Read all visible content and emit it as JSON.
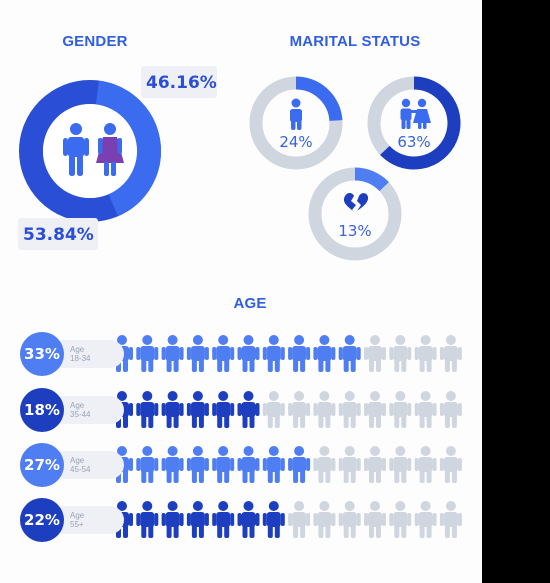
{
  "colors": {
    "dark_blue": "#1d3fbf",
    "mid_blue": "#3b6cf0",
    "light_blue": "#4f7ef2",
    "grey": "#cfd6e0",
    "title_blue": "#2f5ee0",
    "pct_blue": "#3a63d8"
  },
  "gender": {
    "title": "GENDER",
    "female_pct": "46.16%",
    "male_pct": "53.84%",
    "female_value": 46.16,
    "male_value": 53.84
  },
  "marital": {
    "title": "MARITAL STATUS",
    "items": [
      {
        "icon": "single-person-icon",
        "label": "24%",
        "value": 24
      },
      {
        "icon": "couple-icon",
        "label": "63%",
        "value": 63
      },
      {
        "icon": "broken-heart-icon",
        "label": "13%",
        "value": 13
      }
    ]
  },
  "age": {
    "title": "AGE",
    "rows": [
      {
        "pct": "33%",
        "line1": "Age",
        "line2": "18-34",
        "filled": 10,
        "total": 14,
        "color": "#4f7ef2"
      },
      {
        "pct": "18%",
        "line1": "Age",
        "line2": "35-44",
        "filled": 6,
        "total": 14,
        "color": "#1d3fbf"
      },
      {
        "pct": "27%",
        "line1": "Age",
        "line2": "45-54",
        "filled": 8,
        "total": 14,
        "color": "#4f7ef2"
      },
      {
        "pct": "22%",
        "line1": "Age",
        "line2": "55+",
        "filled": 7,
        "total": 14,
        "color": "#1d3fbf"
      }
    ]
  },
  "chart_data": [
    {
      "type": "pie",
      "title": "GENDER",
      "categories": [
        "",
        ""
      ],
      "values": [
        53.84,
        46.16
      ]
    },
    {
      "type": "pie",
      "title": "MARITAL STATUS",
      "categories": [
        "",
        "",
        ""
      ],
      "values": [
        24,
        63,
        13
      ]
    },
    {
      "type": "bar",
      "title": "AGE",
      "categories": [
        "18-34",
        "35-44",
        "45-54",
        "55+"
      ],
      "values": [
        33,
        18,
        27,
        22
      ]
    }
  ]
}
